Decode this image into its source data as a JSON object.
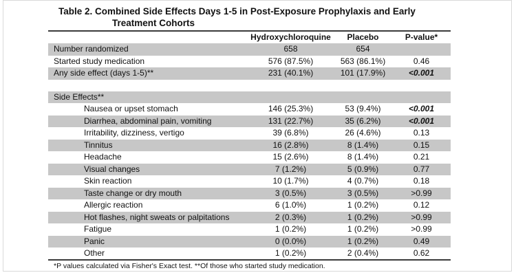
{
  "page": {
    "title_line1": "Table 2. Combined Side Effects Days 1-5 in Post-Exposure Prophylaxis and Early",
    "title_line2": "Treatment Cohorts",
    "footnote": "*P values calculated via Fisher's Exact test. **Of those who started study medication."
  },
  "table": {
    "columns": [
      "Hydroxychloroquine",
      "Placebo",
      "P-value*"
    ],
    "rows": [
      {
        "label": "Number randomized",
        "hcq": "658",
        "placebo": "654",
        "p": "",
        "shaded": true
      },
      {
        "label": "Started study medication",
        "hcq": "576 (87.5%)",
        "placebo": "563 (86.1%)",
        "p": "0.46"
      },
      {
        "label": "Any side effect (days 1-5)**",
        "hcq": "231 (40.1%)",
        "placebo": "101 (17.9%)",
        "p": "<0.001",
        "shaded": true,
        "sig": true
      },
      {
        "spacer": true
      },
      {
        "label": "Side Effects**",
        "hcq": "",
        "placebo": "",
        "p": "",
        "shaded": true,
        "section": true
      },
      {
        "label": "Nausea or upset stomach",
        "hcq": "146 (25.3%)",
        "placebo": "53 (9.4%)",
        "p": "<0.001",
        "indent": true,
        "sig": true
      },
      {
        "label": "Diarrhea, abdominal pain, vomiting",
        "hcq": "131 (22.7%)",
        "placebo": "35 (6.2%)",
        "p": "<0.001",
        "indent": true,
        "shaded": true,
        "sig": true
      },
      {
        "label": "Irritability, dizziness, vertigo",
        "hcq": "39 (6.8%)",
        "placebo": "26 (4.6%)",
        "p": "0.13",
        "indent": true
      },
      {
        "label": "Tinnitus",
        "hcq": "16 (2.8%)",
        "placebo": "8 (1.4%)",
        "p": "0.15",
        "indent": true,
        "shaded": true
      },
      {
        "label": "Headache",
        "hcq": "15 (2.6%)",
        "placebo": "8 (1.4%)",
        "p": "0.21",
        "indent": true
      },
      {
        "label": "Visual changes",
        "hcq": "7 (1.2%)",
        "placebo": "5 (0.9%)",
        "p": "0.77",
        "indent": true,
        "shaded": true
      },
      {
        "label": "Skin reaction",
        "hcq": "10 (1.7%)",
        "placebo": "4 (0.7%)",
        "p": "0.18",
        "indent": true
      },
      {
        "label": "Taste change or dry mouth",
        "hcq": "3 (0.5%)",
        "placebo": "3 (0.5%)",
        "p": ">0.99",
        "indent": true,
        "shaded": true
      },
      {
        "label": "Allergic reaction",
        "hcq": "6 (1.0%)",
        "placebo": "1 (0.2%)",
        "p": "0.12",
        "indent": true
      },
      {
        "label": "Hot flashes, night sweats or palpitations",
        "hcq": "2 (0.3%)",
        "placebo": "1 (0.2%)",
        "p": ">0.99",
        "indent": true,
        "shaded": true
      },
      {
        "label": "Fatigue",
        "hcq": "1 (0.2%)",
        "placebo": "1 (0.2%)",
        "p": ">0.99",
        "indent": true
      },
      {
        "label": "Panic",
        "hcq": "0 (0.0%)",
        "placebo": "1 (0.2%)",
        "p": "0.49",
        "indent": true,
        "shaded": true
      },
      {
        "label": "Other",
        "hcq": "1 (0.2%)",
        "placebo": "2 (0.4%)",
        "p": "0.62",
        "indent": true
      }
    ]
  },
  "colors": {
    "row_shade": "#c7c7c7",
    "rule": "#3b3b3b",
    "text": "#111111",
    "page_border": "#d9d9d9"
  }
}
